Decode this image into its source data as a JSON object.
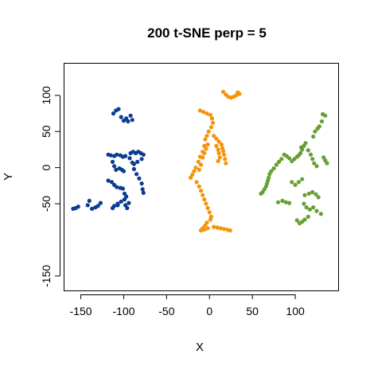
{
  "chart_data": {
    "type": "scatter",
    "title": "200 t-SNE perp = 5",
    "xlabel": "X",
    "ylabel": "Y",
    "xlim": [
      -170,
      150
    ],
    "ylim": [
      -170,
      145
    ],
    "xticks": [
      -150,
      -100,
      -50,
      0,
      50,
      100
    ],
    "yticks": [
      -150,
      -50,
      0,
      50,
      100
    ],
    "xtick_labels": [
      "-150",
      "-100",
      "-50",
      "0",
      "50",
      "100"
    ],
    "ytick_labels": [
      "-150",
      "-50",
      "0",
      "50",
      "100"
    ],
    "grid": false,
    "series": [
      {
        "color": "#0b3c91",
        "points": [
          [
            -112,
            75
          ],
          [
            -109,
            79
          ],
          [
            -106,
            81
          ],
          [
            -103,
            70
          ],
          [
            -100,
            65
          ],
          [
            -97,
            68
          ],
          [
            -95,
            64
          ],
          [
            -92,
            72
          ],
          [
            -90,
            66
          ],
          [
            -118,
            18
          ],
          [
            -115,
            17
          ],
          [
            -111,
            16
          ],
          [
            -108,
            18
          ],
          [
            -104,
            17
          ],
          [
            -101,
            15
          ],
          [
            -98,
            16
          ],
          [
            -92,
            20
          ],
          [
            -89,
            22
          ],
          [
            -86,
            20
          ],
          [
            -83,
            22
          ],
          [
            -80,
            20
          ],
          [
            -77,
            18
          ],
          [
            -79,
            12
          ],
          [
            -84,
            8
          ],
          [
            -88,
            5
          ],
          [
            -113,
            8
          ],
          [
            -111,
            2
          ],
          [
            -109,
            -3
          ],
          [
            -105,
            -1
          ],
          [
            -93,
            13
          ],
          [
            -90,
            7
          ],
          [
            -88,
            -2
          ],
          [
            -85,
            -9
          ],
          [
            -82,
            -15
          ],
          [
            -79,
            -22
          ],
          [
            -78,
            -30
          ],
          [
            -77,
            -35
          ],
          [
            -102,
            -3
          ],
          [
            -100,
            -5
          ],
          [
            -118,
            -18
          ],
          [
            -114,
            -20
          ],
          [
            -111,
            -24
          ],
          [
            -108,
            -27
          ],
          [
            -104,
            -28
          ],
          [
            -101,
            -29
          ],
          [
            -99,
            -36
          ],
          [
            -97,
            -40
          ],
          [
            -99,
            -44
          ],
          [
            -103,
            -47
          ],
          [
            -107,
            -50
          ],
          [
            -111,
            -53
          ],
          [
            -113,
            -56
          ],
          [
            -107,
            -52
          ],
          [
            -127,
            -49
          ],
          [
            -130,
            -53
          ],
          [
            -133,
            -55
          ],
          [
            -137,
            -57
          ],
          [
            -140,
            -46
          ],
          [
            -142,
            -52
          ],
          [
            -98,
            -52
          ],
          [
            -96,
            -56
          ],
          [
            -94,
            -49
          ],
          [
            -156,
            -56
          ],
          [
            -153,
            -54
          ],
          [
            -159,
            -57
          ]
        ]
      },
      {
        "color": "#f5940a",
        "points": [
          [
            16,
            105
          ],
          [
            19,
            101
          ],
          [
            22,
            98
          ],
          [
            25,
            97
          ],
          [
            28,
            98
          ],
          [
            31,
            100
          ],
          [
            33,
            104
          ],
          [
            35,
            102
          ],
          [
            -11,
            79
          ],
          [
            -7,
            77
          ],
          [
            -3,
            75
          ],
          [
            1,
            73
          ],
          [
            3,
            68
          ],
          [
            4,
            62
          ],
          [
            2,
            56
          ],
          [
            -1,
            50
          ],
          [
            -3,
            44
          ],
          [
            -5,
            39
          ],
          [
            -6,
            30
          ],
          [
            -8,
            22
          ],
          [
            -11,
            15
          ],
          [
            -13,
            8
          ],
          [
            -16,
            0
          ],
          [
            -18,
            -5
          ],
          [
            -20,
            -10
          ],
          [
            -22,
            -14
          ],
          [
            -15,
            -20
          ],
          [
            -12,
            -26
          ],
          [
            -10,
            -32
          ],
          [
            -8,
            -38
          ],
          [
            -6,
            -44
          ],
          [
            -4,
            -50
          ],
          [
            -2,
            -56
          ],
          [
            0,
            -62
          ],
          [
            2,
            -68
          ],
          [
            1,
            -72
          ],
          [
            -3,
            -76
          ],
          [
            -5,
            -80
          ],
          [
            -8,
            -84
          ],
          [
            -10,
            -87
          ],
          [
            -6,
            -86
          ],
          [
            -2,
            -84
          ],
          [
            5,
            -82
          ],
          [
            9,
            -83
          ],
          [
            13,
            -84
          ],
          [
            17,
            -85
          ],
          [
            21,
            -86
          ],
          [
            24,
            -87
          ],
          [
            5,
            44
          ],
          [
            8,
            40
          ],
          [
            11,
            36
          ],
          [
            14,
            32
          ],
          [
            15,
            27
          ],
          [
            16,
            23
          ],
          [
            17,
            18
          ],
          [
            18,
            12
          ],
          [
            19,
            6
          ],
          [
            8,
            30
          ],
          [
            10,
            25
          ],
          [
            11,
            20
          ],
          [
            12,
            14
          ],
          [
            10,
            9
          ],
          [
            -2,
            32
          ],
          [
            -4,
            26
          ],
          [
            -6,
            20
          ],
          [
            -8,
            14
          ],
          [
            -10,
            4
          ],
          [
            -12,
            -3
          ]
        ]
      },
      {
        "color": "#66a032",
        "points": [
          [
            132,
            74
          ],
          [
            135,
            72
          ],
          [
            131,
            64
          ],
          [
            128,
            57
          ],
          [
            126,
            54
          ],
          [
            123,
            50
          ],
          [
            121,
            43
          ],
          [
            112,
            34
          ],
          [
            110,
            30
          ],
          [
            108,
            25
          ],
          [
            106,
            20
          ],
          [
            104,
            17
          ],
          [
            107,
            28
          ],
          [
            115,
            24
          ],
          [
            118,
            18
          ],
          [
            120,
            12
          ],
          [
            122,
            6
          ],
          [
            125,
            2
          ],
          [
            133,
            14
          ],
          [
            135,
            10
          ],
          [
            137,
            6
          ],
          [
            102,
            15
          ],
          [
            99,
            12
          ],
          [
            96,
            9
          ],
          [
            93,
            13
          ],
          [
            90,
            16
          ],
          [
            87,
            18
          ],
          [
            84,
            12
          ],
          [
            81,
            8
          ],
          [
            78,
            4
          ],
          [
            75,
            -1
          ],
          [
            72,
            -5
          ],
          [
            70,
            -9
          ],
          [
            69,
            -14
          ],
          [
            68,
            -18
          ],
          [
            67,
            -22
          ],
          [
            66,
            -26
          ],
          [
            64,
            -30
          ],
          [
            62,
            -34
          ],
          [
            60,
            -36
          ],
          [
            108,
            -16
          ],
          [
            104,
            -20
          ],
          [
            100,
            -24
          ],
          [
            96,
            -20
          ],
          [
            111,
            -38
          ],
          [
            116,
            -36
          ],
          [
            120,
            -34
          ],
          [
            124,
            -37
          ],
          [
            127,
            -41
          ],
          [
            110,
            -50
          ],
          [
            113,
            -55
          ],
          [
            117,
            -58
          ],
          [
            121,
            -55
          ],
          [
            125,
            -60
          ],
          [
            130,
            -64
          ],
          [
            115,
            -68
          ],
          [
            111,
            -72
          ],
          [
            108,
            -75
          ],
          [
            105,
            -77
          ],
          [
            102,
            -73
          ],
          [
            85,
            -46
          ],
          [
            89,
            -48
          ],
          [
            93,
            -49
          ],
          [
            80,
            -48
          ]
        ]
      }
    ]
  }
}
